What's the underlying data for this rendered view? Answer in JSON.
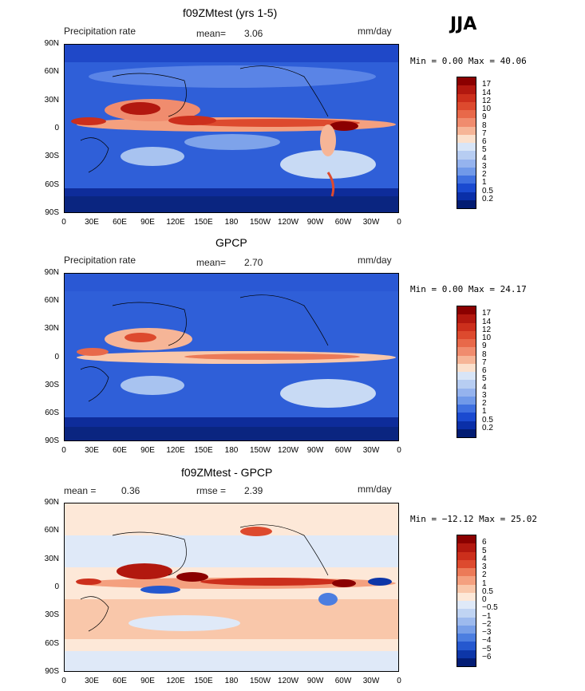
{
  "season": "JJA",
  "panels": [
    {
      "title": "f09ZMtest (yrs 1-5)",
      "left_label": "Precipitation rate",
      "center_label": "mean=",
      "center_value": "3.06",
      "right_label": "mm/day",
      "minmax": "Min =    0.00 Max =  40.06",
      "colorbar_labels": [
        "17",
        "14",
        "12",
        "10",
        "9",
        "8",
        "7",
        "6",
        "5",
        "4",
        "3",
        "2",
        "1",
        "0.5",
        "0.2"
      ],
      "colorbar_colors": [
        "#8b0000",
        "#b2180f",
        "#cc2f1c",
        "#dd4a2e",
        "#e8694a",
        "#f08c6e",
        "#f6b597",
        "#fbe0cc",
        "#d8e5f7",
        "#b7cdf2",
        "#95b3ee",
        "#7099e9",
        "#3f70e0",
        "#1a4ad0",
        "#0a2fa8",
        "#021c72"
      ]
    },
    {
      "title": "GPCP",
      "left_label": "Precipitation rate",
      "center_label": "mean=",
      "center_value": "2.70",
      "right_label": "mm/day",
      "minmax": "Min =    0.00 Max =  24.17",
      "colorbar_labels": [
        "17",
        "14",
        "12",
        "10",
        "9",
        "8",
        "7",
        "6",
        "5",
        "4",
        "3",
        "2",
        "1",
        "0.5",
        "0.2"
      ],
      "colorbar_colors": [
        "#8b0000",
        "#b2180f",
        "#cc2f1c",
        "#dd4a2e",
        "#e8694a",
        "#f08c6e",
        "#f6b597",
        "#fbe0cc",
        "#d8e5f7",
        "#b7cdf2",
        "#95b3ee",
        "#7099e9",
        "#3f70e0",
        "#1a4ad0",
        "#0a2fa8",
        "#021c72"
      ]
    },
    {
      "title": "f09ZMtest - GPCP",
      "left_label": "mean =",
      "left_value": "0.36",
      "center_label": "rmse =",
      "center_value": "2.39",
      "right_label": "mm/day",
      "minmax": "Min = −12.12 Max =  25.02",
      "colorbar_labels": [
        "6",
        "5",
        "4",
        "3",
        "2",
        "1",
        "0.5",
        "0",
        "−0.5",
        "−1",
        "−2",
        "−3",
        "−4",
        "−5",
        "−6"
      ],
      "colorbar_colors": [
        "#8b0000",
        "#b2180f",
        "#cc2f1c",
        "#dd4a2e",
        "#ec7a58",
        "#f4a07f",
        "#f9c7aa",
        "#fde8d8",
        "#dfe9f8",
        "#c0d4f3",
        "#9dbaee",
        "#789fe8",
        "#4c7ee0",
        "#2558cf",
        "#0d36a8",
        "#031d75"
      ]
    }
  ],
  "lat_ticks": [
    "90N",
    "60N",
    "30N",
    "0",
    "30S",
    "60S",
    "90S"
  ],
  "lon_ticks": [
    "0",
    "30E",
    "60E",
    "90E",
    "120E",
    "150E",
    "180",
    "150W",
    "120W",
    "90W",
    "60W",
    "30W",
    "0"
  ]
}
